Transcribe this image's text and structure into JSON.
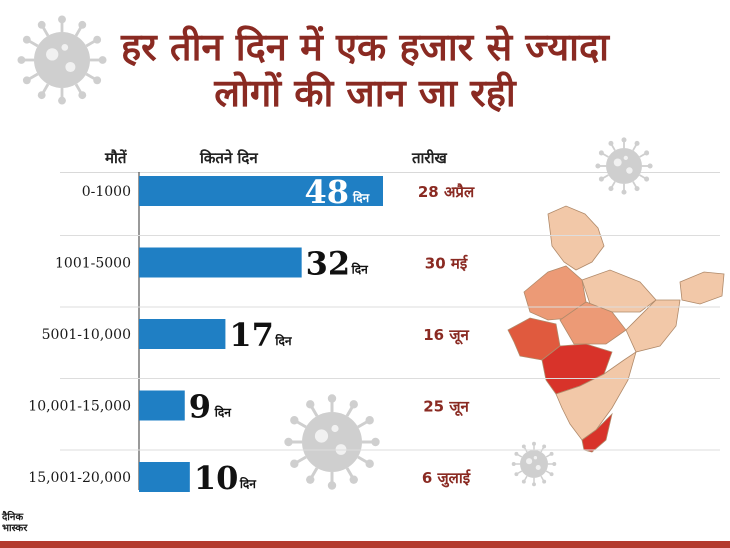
{
  "title": {
    "line1": "हर तीन दिन में एक हजार से ज्यादा",
    "line2": "लोगों की जान जा रही"
  },
  "columns": {
    "deaths": "मौतें",
    "days": "कितने दिन",
    "date": "तारीख"
  },
  "colors": {
    "title": "#8a2a22",
    "bar": "#1f7fc4",
    "date": "#8a2a22",
    "virus": "#cfcfcf",
    "map_base": "#f2c8a8",
    "map_mid": "#ec9a76",
    "map_dark": "#e05a3e",
    "map_hot": "#d8332a"
  },
  "chart_data": {
    "type": "bar",
    "orientation": "horizontal",
    "title": "हर तीन दिन में एक हजार से ज्यादा लोगों की जान जा रही",
    "ylabel": "मौतें",
    "xlabel": "कितने दिन",
    "unit": "दिन",
    "xlim": [
      0,
      60
    ],
    "categories": [
      "0-1000",
      "1001-5000",
      "5001-10,000",
      "10,001-15,000",
      "15,001-20,000"
    ],
    "values": [
      48,
      32,
      17,
      9,
      10
    ],
    "dates": [
      "28 अप्रैल",
      "30 मई",
      "16 जून",
      "25 जून",
      "6 जुलाई"
    ]
  },
  "logo": {
    "line1": "दैनिक",
    "line2": "भास्कर"
  }
}
